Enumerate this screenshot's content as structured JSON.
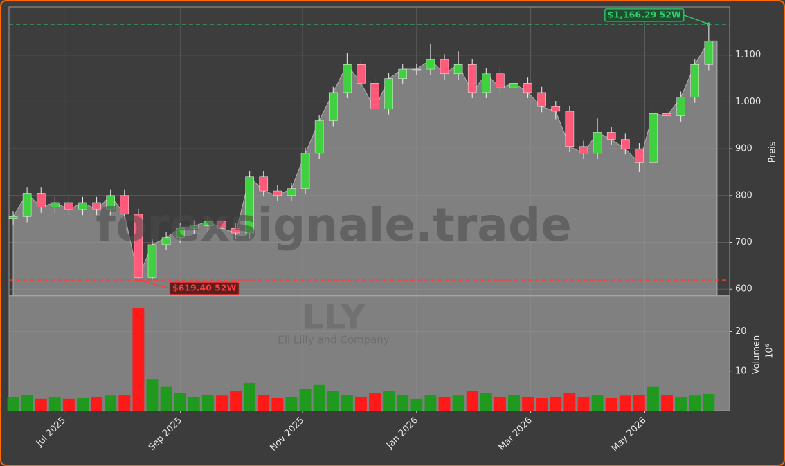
{
  "chart_data": [
    {
      "type": "candlestick",
      "ylabel": "Preis",
      "watermark": "forexsignale.trade",
      "ticker": "LLY",
      "company": "Eli Lilly and Company",
      "x": [
        0,
        1,
        2,
        3,
        4,
        5,
        6,
        7,
        8,
        9,
        10,
        11,
        12,
        13,
        14,
        15,
        16,
        17,
        18,
        19,
        20,
        21,
        22,
        23,
        24,
        25,
        26,
        27,
        28,
        29,
        30,
        31,
        32,
        33,
        34,
        35,
        36,
        37,
        38,
        39,
        40,
        41,
        42,
        43,
        44,
        45,
        46,
        47,
        48,
        49,
        50
      ],
      "open": [
        750,
        755,
        805,
        775,
        785,
        770,
        785,
        770,
        800,
        760,
        625,
        695,
        710,
        730,
        735,
        745,
        730,
        720,
        840,
        810,
        800,
        815,
        890,
        960,
        1020,
        1080,
        1040,
        985,
        1050,
        1070,
        1070,
        1090,
        1060,
        1080,
        1020,
        1060,
        1030,
        1040,
        1020,
        990,
        980,
        905,
        890,
        935,
        920,
        900,
        870,
        975,
        970,
        1010,
        1080
      ],
      "high": [
        767,
        817,
        817,
        797,
        797,
        797,
        797,
        812,
        812,
        772,
        707,
        722,
        742,
        747,
        757,
        757,
        742,
        852,
        852,
        822,
        827,
        902,
        972,
        1032,
        1105,
        1092,
        1052,
        1062,
        1082,
        1082,
        1125,
        1102,
        1108,
        1092,
        1072,
        1072,
        1052,
        1052,
        1032,
        1002,
        992,
        917,
        965,
        947,
        932,
        912,
        987,
        987,
        1022,
        1092,
        1166.29
      ],
      "low": [
        738,
        743,
        763,
        763,
        758,
        758,
        758,
        758,
        748,
        619.4,
        621,
        683,
        698,
        718,
        723,
        718,
        708,
        708,
        798,
        788,
        788,
        803,
        878,
        948,
        1008,
        1028,
        973,
        973,
        1038,
        1058,
        1058,
        1048,
        1048,
        1008,
        1008,
        1018,
        1018,
        1008,
        978,
        963,
        893,
        878,
        878,
        908,
        888,
        850,
        858,
        958,
        958,
        998,
        1068
      ],
      "close": [
        755,
        805,
        775,
        785,
        770,
        785,
        770,
        800,
        760,
        625,
        695,
        710,
        730,
        735,
        745,
        730,
        720,
        840,
        810,
        800,
        815,
        890,
        960,
        1020,
        1080,
        1040,
        985,
        1050,
        1070,
        1070,
        1090,
        1060,
        1080,
        1020,
        1060,
        1030,
        1040,
        1020,
        990,
        980,
        905,
        890,
        935,
        920,
        900,
        870,
        975,
        970,
        1010,
        1080,
        1130
      ],
      "up_color": "#3fd13f",
      "down_color": "#ff5a7a",
      "area_color": "#808080",
      "xlim": [
        -0.3,
        51.5
      ],
      "ylim": [
        587,
        1203
      ],
      "yticks": [
        600,
        700,
        800,
        900,
        {
          "value": 1000,
          "label": "1.000"
        },
        {
          "value": 1100,
          "label": "1.100"
        }
      ],
      "xticks": [
        {
          "value": 3.66,
          "label": "Jul 2025"
        },
        {
          "value": 12.03,
          "label": "Sep 2025"
        },
        {
          "value": 20.8,
          "label": "Nov 2025"
        },
        {
          "value": 29.0,
          "label": "Jan 2026"
        },
        {
          "value": 37.2,
          "label": "Mar 2026"
        },
        {
          "value": 45.4,
          "label": "May 2026"
        }
      ],
      "grid": true,
      "annotations": [
        {
          "value": 1166.29,
          "label": "$1,166.29 52W",
          "color": "#2ecc71",
          "x": 50
        },
        {
          "value": 619.4,
          "label": "$619.40 52W",
          "color": "#ff3b3b",
          "x": 9
        }
      ]
    },
    {
      "type": "bar",
      "ylabel": "Volumen",
      "offset_label": "10⁶",
      "values": [
        3.5,
        4,
        3,
        3.5,
        3,
        3.2,
        3.5,
        3.8,
        4,
        26,
        8,
        6,
        4.5,
        3.5,
        4,
        3.8,
        5,
        7,
        4,
        3.2,
        3.5,
        5.5,
        6.5,
        5,
        4,
        3.5,
        4.5,
        5,
        4,
        3,
        4,
        3.5,
        3.8,
        5,
        4.5,
        3.5,
        4,
        3.5,
        3.2,
        3.5,
        4.5,
        3.5,
        4,
        3.2,
        3.8,
        4,
        6,
        4,
        3.5,
        3.8,
        4.2
      ],
      "up_color": "#1f9a1f",
      "down_color": "#ff1a1a",
      "ylim": [
        0,
        29
      ],
      "yticks": [
        10,
        20
      ],
      "grid": true
    }
  ]
}
